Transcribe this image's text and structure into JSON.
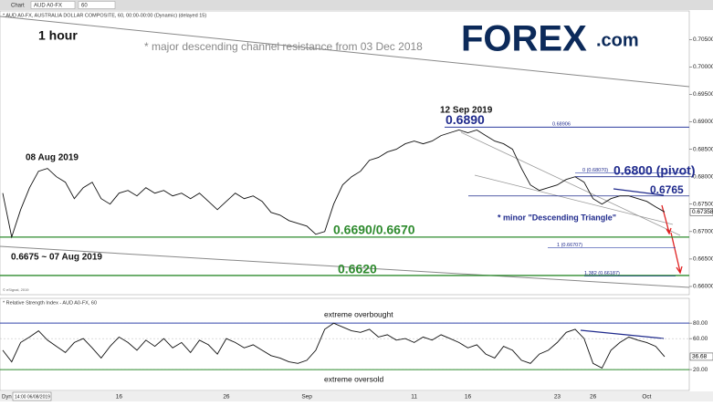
{
  "toolbar": {
    "label": "Chart",
    "symbol": "AUD A0-FX",
    "interval": "60"
  },
  "logo": "FOREX",
  "logo_suffix": ".com",
  "copyright": "© eSignal, 2019",
  "x_prefix": "Dyn",
  "chart_data": [
    {
      "type": "line",
      "title": "* AUD A0-FX, AUSTRALIA DOLLAR COMPOSITE, 60, 00:00-00:00 (Dynamic) (delayed 15)",
      "color": "#111111",
      "categories": [
        "14:00 06/08/2019",
        null,
        null,
        null,
        null,
        null,
        null,
        null,
        null,
        null,
        null,
        null,
        null,
        "16",
        null,
        null,
        null,
        null,
        null,
        null,
        null,
        null,
        null,
        null,
        null,
        "26",
        null,
        null,
        null,
        null,
        null,
        null,
        null,
        null,
        "Sep",
        null,
        null,
        null,
        null,
        null,
        null,
        null,
        null,
        null,
        null,
        null,
        "11",
        null,
        null,
        null,
        null,
        null,
        "16",
        null,
        null,
        null,
        null,
        null,
        null,
        null,
        null,
        null,
        "23",
        null,
        null,
        null,
        "26",
        null,
        null,
        null,
        null,
        null,
        "Oct",
        null,
        null
      ],
      "values": [
        0.677,
        0.669,
        0.674,
        0.678,
        0.681,
        0.6815,
        0.68,
        0.679,
        0.676,
        0.678,
        0.679,
        0.676,
        0.675,
        0.677,
        0.6775,
        0.6765,
        0.678,
        0.677,
        0.6775,
        0.6765,
        0.677,
        0.676,
        0.677,
        0.6755,
        0.674,
        0.6755,
        0.677,
        0.676,
        0.6765,
        0.6755,
        0.6735,
        0.673,
        0.672,
        0.6715,
        0.671,
        0.6695,
        0.67,
        0.675,
        0.6785,
        0.68,
        0.681,
        0.683,
        0.6835,
        0.6845,
        0.685,
        0.686,
        0.6865,
        0.686,
        0.6865,
        0.6875,
        0.688,
        0.6885,
        0.688,
        0.6885,
        0.6875,
        0.6865,
        0.686,
        0.685,
        0.6815,
        0.6785,
        0.6775,
        0.678,
        0.6785,
        0.6795,
        0.68,
        0.679,
        0.676,
        0.675,
        0.676,
        0.6765,
        0.6765,
        0.676,
        0.6755,
        0.6745,
        0.67358
      ],
      "last_label": "0.67358",
      "ylim": [
        0.6585,
        0.7102
      ],
      "yticks": [
        {
          "value": 0.705,
          "label": "0.70500"
        },
        {
          "value": 0.7,
          "label": "0.70000"
        },
        {
          "value": 0.695,
          "label": "0.69500"
        },
        {
          "value": 0.69,
          "label": "0.69000"
        },
        {
          "value": 0.685,
          "label": "0.68500"
        },
        {
          "value": 0.68,
          "label": "0.68000"
        },
        {
          "value": 0.675,
          "label": "0.67500"
        },
        {
          "value": 0.67,
          "label": "0.67000"
        },
        {
          "value": 0.665,
          "label": "0.66500"
        },
        {
          "value": 0.66,
          "label": "0.66000"
        }
      ],
      "levels": [
        {
          "label": "0.6890",
          "value": 0.689,
          "color": "#1f2a8c"
        },
        {
          "label": "0.6800 (pivot)",
          "value": 0.68,
          "color": "#1f2a8c"
        },
        {
          "label": "0.6765",
          "value": 0.6765,
          "color": "#1f2a8c"
        },
        {
          "label": "0.6690/0.6670",
          "value": 0.669,
          "color": "#2e8b2e"
        },
        {
          "label": "0.6620",
          "value": 0.662,
          "color": "#2e8b2e"
        }
      ],
      "fib": [
        {
          "label": "0.68906",
          "value": 0.68906
        },
        {
          "label": "0 (0.68070)",
          "value": 0.6807
        },
        {
          "label": "1 (0.66707)",
          "value": 0.66707
        },
        {
          "label": "1.382 (0.66187)",
          "value": 0.66187
        }
      ],
      "annotations": [
        "1 hour",
        "* major descending channel resistance from 03 Dec 2018",
        "12 Sep 2019",
        "08 Aug 2019",
        "0.6675 ~ 07 Aug 2019",
        "* minor \"Descending Triangle\""
      ]
    },
    {
      "type": "line",
      "title": "* Relative Strength Index - AUD A0-FX, 60",
      "color": "#111111",
      "values": [
        45,
        30,
        55,
        62,
        70,
        58,
        50,
        42,
        55,
        60,
        48,
        35,
        50,
        62,
        55,
        45,
        58,
        50,
        60,
        48,
        55,
        42,
        58,
        52,
        40,
        60,
        55,
        48,
        52,
        45,
        38,
        35,
        30,
        28,
        32,
        45,
        72,
        80,
        75,
        70,
        68,
        72,
        62,
        65,
        58,
        60,
        55,
        62,
        58,
        65,
        60,
        55,
        48,
        52,
        40,
        35,
        50,
        45,
        32,
        28,
        40,
        45,
        55,
        68,
        72,
        60,
        28,
        22,
        45,
        55,
        62,
        58,
        55,
        50,
        36.68
      ],
      "last_label": "36.68",
      "ylim": [
        -7,
        112
      ],
      "yticks": [
        {
          "value": 80,
          "label": "80.00"
        },
        {
          "value": 60,
          "label": "60.00"
        },
        {
          "value": 20,
          "label": "20.00"
        }
      ],
      "levels": [
        {
          "value": 80,
          "color": "#3344aa"
        },
        {
          "value": 20,
          "color": "#2e8b2e"
        }
      ],
      "annotations": [
        "extreme overbought",
        "extreme oversold"
      ]
    }
  ]
}
